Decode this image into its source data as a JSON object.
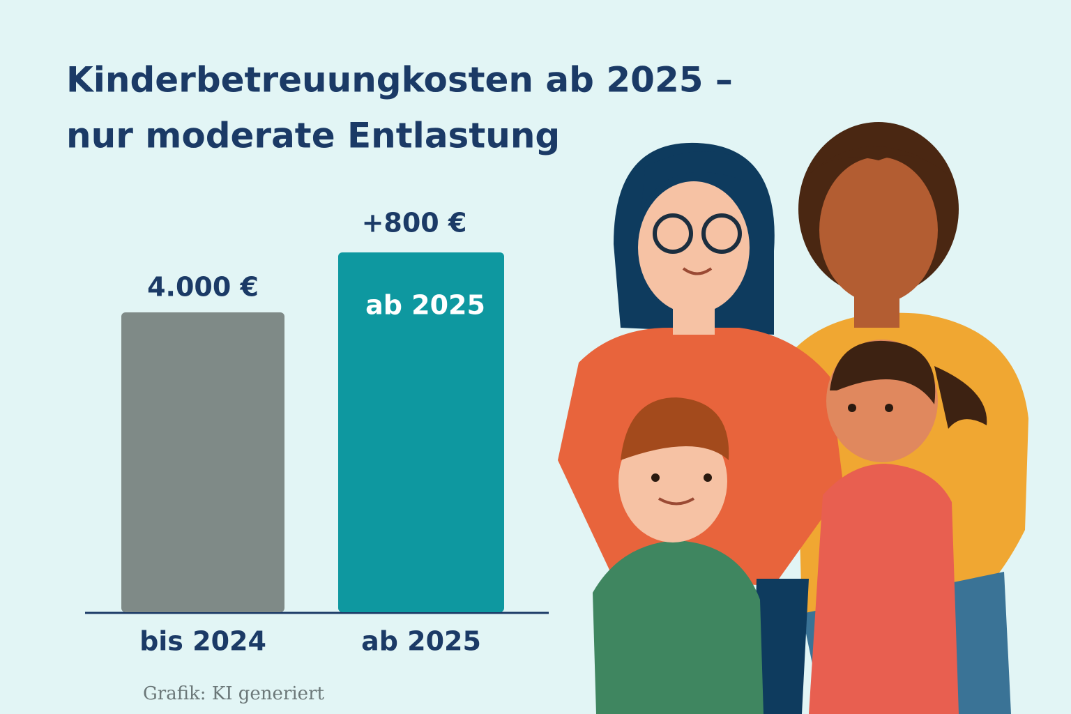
{
  "chart_data": {
    "type": "bar",
    "title_lines": [
      "Kinderbetreuungkosten ab 2025 –",
      "nur moderate Entlastung"
    ],
    "categories": [
      "bis 2024",
      "ab 2025"
    ],
    "values": [
      4000,
      4800
    ],
    "value_labels": [
      "4.000 €",
      null
    ],
    "colors": [
      "#7f8a87",
      "#0e98a0"
    ],
    "annotations": [
      "+800 €",
      "ab 2025"
    ],
    "footer": "Grafik: KI generiert"
  }
}
